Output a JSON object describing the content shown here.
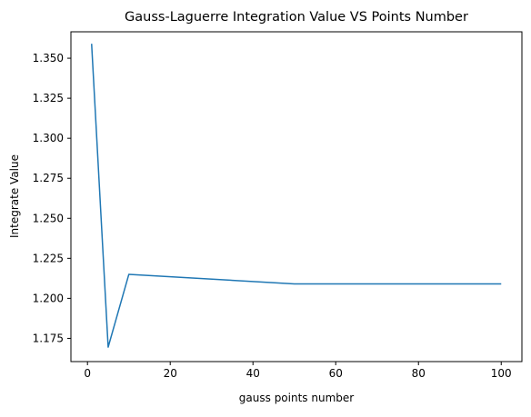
{
  "chart_data": {
    "type": "line",
    "title": "Gauss-Laguerre Integration Value VS Points Number",
    "xlabel": "gauss points number",
    "ylabel": "Integrate Value",
    "xlim": [
      -4,
      105
    ],
    "ylim": [
      1.1605,
      1.3665
    ],
    "xticks": [
      0,
      20,
      40,
      60,
      80,
      100
    ],
    "xtick_labels": [
      "0",
      "20",
      "40",
      "60",
      "80",
      "100"
    ],
    "yticks": [
      1.175,
      1.2,
      1.225,
      1.25,
      1.275,
      1.3,
      1.325,
      1.35
    ],
    "ytick_labels": [
      "1.175",
      "1.200",
      "1.225",
      "1.250",
      "1.275",
      "1.300",
      "1.325",
      "1.350"
    ],
    "grid": false,
    "series": [
      {
        "x": [
          1,
          5,
          10,
          50,
          100
        ],
        "y": [
          1.359,
          1.1695,
          1.215,
          1.209,
          1.209
        ],
        "color": "#1f77b4"
      }
    ]
  }
}
